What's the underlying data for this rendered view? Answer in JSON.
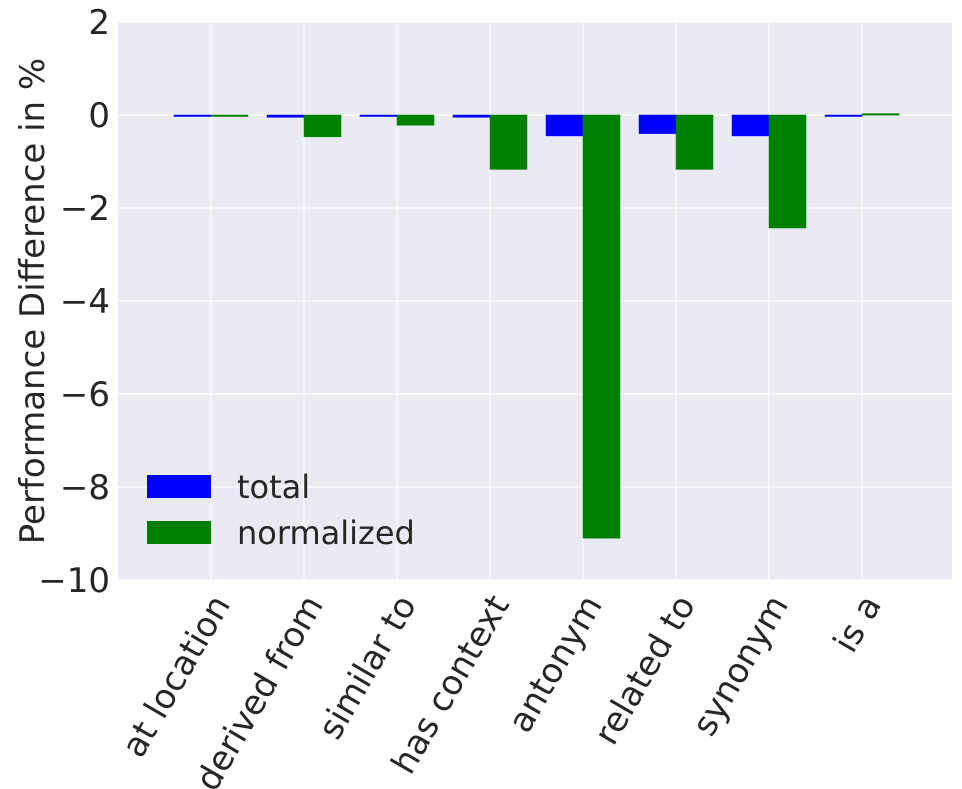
{
  "chart_data": {
    "type": "bar",
    "categories": [
      "at location",
      "derived from",
      "similar to",
      "has context",
      "antonym",
      "related to",
      "synonym",
      "is a"
    ],
    "series": [
      {
        "name": "total",
        "values": [
          -0.01,
          -0.05,
          -0.03,
          -0.05,
          -0.45,
          -0.4,
          -0.45,
          -0.01
        ],
        "color": "#0000ff"
      },
      {
        "name": "normalized",
        "values": [
          -0.02,
          -0.47,
          -0.22,
          -1.17,
          -9.1,
          -1.17,
          -2.43,
          0.03
        ],
        "color": "#008000"
      }
    ],
    "title": "",
    "xlabel": "",
    "ylabel": "Performance Difference in %",
    "ylim": [
      -10,
      2
    ],
    "yticks": [
      2,
      0,
      -2,
      -4,
      -6,
      -8,
      -10
    ],
    "ytick_labels": [
      "2",
      "0",
      "−2",
      "−4",
      "−6",
      "−8",
      "−10"
    ],
    "grid": true,
    "legend_position": "lower-left",
    "background": "#eaeaf2"
  }
}
